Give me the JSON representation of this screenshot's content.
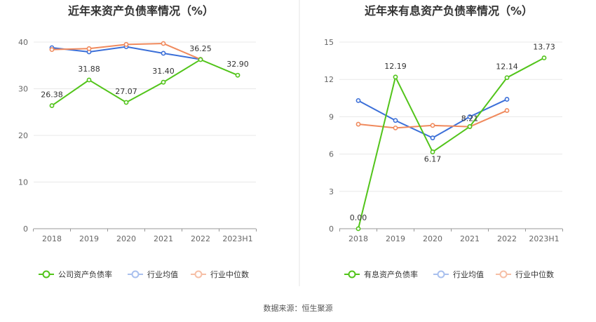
{
  "footer": {
    "source": "数据来源：恒生聚源"
  },
  "chart_data": [
    {
      "type": "line",
      "title": "近年来资产负债率情况（%）",
      "categories": [
        "2018",
        "2019",
        "2020",
        "2021",
        "2022",
        "2023H1"
      ],
      "ylim": [
        0,
        40
      ],
      "yticks": [
        0,
        10,
        20,
        30,
        40
      ],
      "grid": true,
      "legend_position": "bottom",
      "series": [
        {
          "name": "公司资产负债率",
          "color": "#52c41a",
          "values": [
            26.38,
            31.88,
            27.07,
            31.4,
            36.25,
            32.9
          ],
          "labels": [
            "26.38",
            "31.88",
            "27.07",
            "31.40",
            "36.25",
            "32.90"
          ]
        },
        {
          "name": "行业均值",
          "color": "#3b6fd8",
          "values": [
            38.8,
            37.9,
            39.0,
            37.6,
            36.3,
            null
          ]
        },
        {
          "name": "行业中位数",
          "color": "#f08a5d",
          "values": [
            38.4,
            38.6,
            39.5,
            39.7,
            36.3,
            null
          ]
        }
      ]
    },
    {
      "type": "line",
      "title": "近年来有息资产负债率情况（%）",
      "categories": [
        "2018",
        "2019",
        "2020",
        "2021",
        "2022",
        "2023H1"
      ],
      "ylim": [
        0,
        15
      ],
      "yticks": [
        0,
        3,
        6,
        9,
        12,
        15
      ],
      "grid": true,
      "legend_position": "bottom",
      "series": [
        {
          "name": "有息资产负债率",
          "color": "#52c41a",
          "values": [
            0.0,
            12.19,
            6.17,
            8.21,
            12.14,
            13.73
          ],
          "labels": [
            "0.00",
            "12.19",
            "6.17",
            "8.21",
            "12.14",
            "13.73"
          ]
        },
        {
          "name": "行业均值",
          "color": "#3b6fd8",
          "values": [
            10.3,
            8.7,
            7.3,
            9.0,
            10.4,
            null
          ]
        },
        {
          "name": "行业中位数",
          "color": "#f08a5d",
          "values": [
            8.4,
            8.1,
            8.3,
            8.2,
            9.5,
            null
          ]
        }
      ]
    }
  ]
}
